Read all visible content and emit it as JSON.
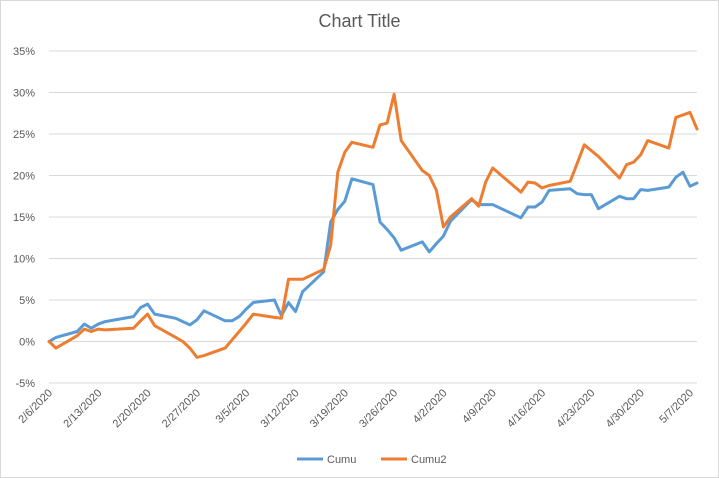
{
  "chart_data": {
    "type": "line",
    "title": "Chart Title",
    "xlabel": "",
    "ylabel": "",
    "y_tick_labels": [
      "-5%",
      "0%",
      "5%",
      "10%",
      "15%",
      "20%",
      "25%",
      "30%",
      "35%"
    ],
    "ylim": [
      -5,
      35
    ],
    "x_tick_labels": [
      "2/6/2020",
      "2/13/2020",
      "2/20/2020",
      "2/27/2020",
      "3/5/2020",
      "3/12/2020",
      "3/19/2020",
      "3/26/2020",
      "4/2/2020",
      "4/9/2020",
      "4/16/2020",
      "4/23/2020",
      "4/30/2020",
      "5/7/2020"
    ],
    "xlim": [
      "2020-02-06",
      "2020-05-08"
    ],
    "grid": true,
    "legend_position": "bottom",
    "series": [
      {
        "name": "Cumu",
        "color": "#5b9bd5",
        "points": [
          [
            "2020-02-06",
            0.0
          ],
          [
            "2020-02-07",
            0.5
          ],
          [
            "2020-02-10",
            1.2
          ],
          [
            "2020-02-11",
            2.1
          ],
          [
            "2020-02-12",
            1.6
          ],
          [
            "2020-02-13",
            2.1
          ],
          [
            "2020-02-14",
            2.4
          ],
          [
            "2020-02-18",
            3.0
          ],
          [
            "2020-02-19",
            4.1
          ],
          [
            "2020-02-20",
            4.5
          ],
          [
            "2020-02-21",
            3.3
          ],
          [
            "2020-02-24",
            2.8
          ],
          [
            "2020-02-25",
            2.4
          ],
          [
            "2020-02-26",
            2.0
          ],
          [
            "2020-02-27",
            2.6
          ],
          [
            "2020-02-28",
            3.7
          ],
          [
            "2020-03-02",
            2.5
          ],
          [
            "2020-03-03",
            2.5
          ],
          [
            "2020-03-04",
            3.0
          ],
          [
            "2020-03-05",
            3.9
          ],
          [
            "2020-03-06",
            4.7
          ],
          [
            "2020-03-09",
            5.0
          ],
          [
            "2020-03-10",
            3.1
          ],
          [
            "2020-03-11",
            4.7
          ],
          [
            "2020-03-12",
            3.6
          ],
          [
            "2020-03-13",
            6.0
          ],
          [
            "2020-03-16",
            8.4
          ],
          [
            "2020-03-17",
            14.4
          ],
          [
            "2020-03-18",
            15.9
          ],
          [
            "2020-03-19",
            16.9
          ],
          [
            "2020-03-20",
            19.6
          ],
          [
            "2020-03-23",
            18.9
          ],
          [
            "2020-03-24",
            14.4
          ],
          [
            "2020-03-25",
            13.5
          ],
          [
            "2020-03-26",
            12.5
          ],
          [
            "2020-03-27",
            11.0
          ],
          [
            "2020-03-30",
            12.0
          ],
          [
            "2020-03-31",
            10.8
          ],
          [
            "2020-04-01",
            11.8
          ],
          [
            "2020-04-02",
            12.7
          ],
          [
            "2020-04-03",
            14.5
          ],
          [
            "2020-04-06",
            17.1
          ],
          [
            "2020-04-07",
            16.5
          ],
          [
            "2020-04-08",
            16.5
          ],
          [
            "2020-04-09",
            16.5
          ],
          [
            "2020-04-13",
            14.9
          ],
          [
            "2020-04-14",
            16.2
          ],
          [
            "2020-04-15",
            16.2
          ],
          [
            "2020-04-16",
            16.8
          ],
          [
            "2020-04-17",
            18.2
          ],
          [
            "2020-04-20",
            18.4
          ],
          [
            "2020-04-21",
            17.8
          ],
          [
            "2020-04-22",
            17.7
          ],
          [
            "2020-04-23",
            17.7
          ],
          [
            "2020-04-24",
            16.0
          ],
          [
            "2020-04-27",
            17.5
          ],
          [
            "2020-04-28",
            17.2
          ],
          [
            "2020-04-29",
            17.2
          ],
          [
            "2020-04-30",
            18.3
          ],
          [
            "2020-05-01",
            18.2
          ],
          [
            "2020-05-04",
            18.6
          ],
          [
            "2020-05-05",
            19.8
          ],
          [
            "2020-05-06",
            20.4
          ],
          [
            "2020-05-07",
            18.7
          ],
          [
            "2020-05-08",
            19.1
          ]
        ]
      },
      {
        "name": "Cumu2",
        "color": "#ed7d31",
        "points": [
          [
            "2020-02-06",
            0.0
          ],
          [
            "2020-02-07",
            -0.8
          ],
          [
            "2020-02-10",
            0.7
          ],
          [
            "2020-02-11",
            1.5
          ],
          [
            "2020-02-12",
            1.2
          ],
          [
            "2020-02-13",
            1.5
          ],
          [
            "2020-02-14",
            1.4
          ],
          [
            "2020-02-18",
            1.6
          ],
          [
            "2020-02-19",
            2.5
          ],
          [
            "2020-02-20",
            3.3
          ],
          [
            "2020-02-21",
            1.9
          ],
          [
            "2020-02-24",
            0.5
          ],
          [
            "2020-02-25",
            0.0
          ],
          [
            "2020-02-26",
            -0.8
          ],
          [
            "2020-02-27",
            -1.9
          ],
          [
            "2020-02-28",
            -1.7
          ],
          [
            "2020-03-02",
            -0.8
          ],
          [
            "2020-03-03",
            0.2
          ],
          [
            "2020-03-04",
            1.2
          ],
          [
            "2020-03-05",
            2.2
          ],
          [
            "2020-03-06",
            3.3
          ],
          [
            "2020-03-09",
            2.9
          ],
          [
            "2020-03-10",
            2.8
          ],
          [
            "2020-03-11",
            7.5
          ],
          [
            "2020-03-12",
            7.5
          ],
          [
            "2020-03-13",
            7.5
          ],
          [
            "2020-03-16",
            8.7
          ],
          [
            "2020-03-17",
            11.6
          ],
          [
            "2020-03-18",
            20.4
          ],
          [
            "2020-03-19",
            22.8
          ],
          [
            "2020-03-20",
            24.0
          ],
          [
            "2020-03-23",
            23.4
          ],
          [
            "2020-03-24",
            26.1
          ],
          [
            "2020-03-25",
            26.3
          ],
          [
            "2020-03-26",
            29.8
          ],
          [
            "2020-03-27",
            24.2
          ],
          [
            "2020-03-30",
            20.6
          ],
          [
            "2020-03-31",
            20.0
          ],
          [
            "2020-04-01",
            18.2
          ],
          [
            "2020-04-02",
            13.8
          ],
          [
            "2020-04-03",
            15.0
          ],
          [
            "2020-04-06",
            17.2
          ],
          [
            "2020-04-07",
            16.3
          ],
          [
            "2020-04-08",
            19.2
          ],
          [
            "2020-04-09",
            20.9
          ],
          [
            "2020-04-13",
            18.0
          ],
          [
            "2020-04-14",
            19.2
          ],
          [
            "2020-04-15",
            19.1
          ],
          [
            "2020-04-16",
            18.5
          ],
          [
            "2020-04-17",
            18.8
          ],
          [
            "2020-04-20",
            19.3
          ],
          [
            "2020-04-21",
            21.5
          ],
          [
            "2020-04-22",
            23.7
          ],
          [
            "2020-04-23",
            23.0
          ],
          [
            "2020-04-24",
            22.3
          ],
          [
            "2020-04-27",
            19.7
          ],
          [
            "2020-04-28",
            21.3
          ],
          [
            "2020-04-29",
            21.6
          ],
          [
            "2020-04-30",
            22.5
          ],
          [
            "2020-05-01",
            24.2
          ],
          [
            "2020-05-04",
            23.3
          ],
          [
            "2020-05-05",
            27.0
          ],
          [
            "2020-05-06",
            27.3
          ],
          [
            "2020-05-07",
            27.6
          ],
          [
            "2020-05-08",
            25.6
          ]
        ]
      }
    ]
  }
}
